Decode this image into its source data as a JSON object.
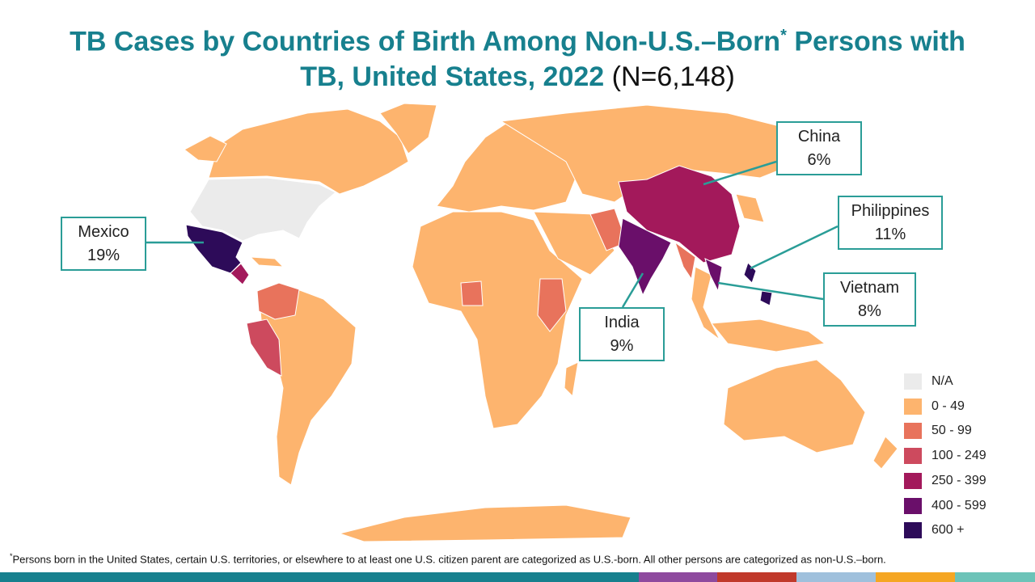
{
  "title": {
    "line_1": "TB Cases by Countries of Birth Among Non-U.S.–Born",
    "asterisk": "*",
    "line_1_end": " Persons with",
    "line_2": "TB, United States, 2022",
    "count": "(N=6,148)"
  },
  "callouts": [
    {
      "label": "China",
      "percent": "6%"
    },
    {
      "label": "Philippines",
      "percent": "11%"
    },
    {
      "label": "Vietnam",
      "percent": "8%"
    },
    {
      "label": "India",
      "percent": "9%"
    },
    {
      "label": "Mexico",
      "percent": "19%"
    }
  ],
  "legend": [
    {
      "label": "N/A",
      "color": "#ebebeb"
    },
    {
      "label": "0 - 49",
      "color": "#fdb46e"
    },
    {
      "label": "50 - 99",
      "color": "#e8735c"
    },
    {
      "label": "100 - 249",
      "color": "#cd4a5e"
    },
    {
      "label": "250 - 399",
      "color": "#a3195b"
    },
    {
      "label": "400 - 599",
      "color": "#6a0f6a"
    },
    {
      "label": "600 +",
      "color": "#2d0b59"
    }
  ],
  "footnote": {
    "marker": "*",
    "text": "Persons born in the United States, certain U.S. territories, or elsewhere to at least one U.S. citizen parent are categorized as U.S.-born. All other persons are categorized as non-U.S.–born."
  }
}
